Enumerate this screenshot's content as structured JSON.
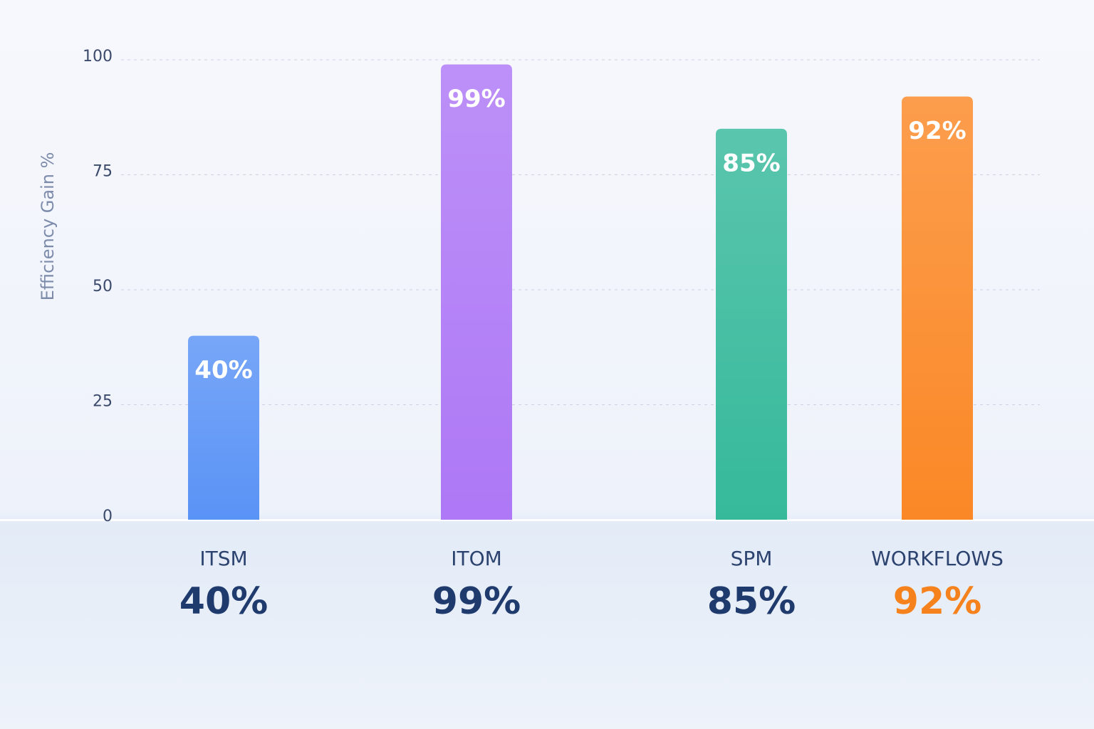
{
  "chart_data": {
    "type": "bar",
    "y_label": "Efficiency Gain %",
    "categories": [
      "ITSM",
      "ITOM",
      "SPM",
      "WORKFLOWS"
    ],
    "values": [
      40,
      99,
      85,
      92
    ],
    "value_labels": [
      "40%",
      "99%",
      "85%",
      "92%"
    ],
    "colors": [
      "#5a93f6",
      "#ae78f6",
      "#36b99b",
      "#fb8826"
    ],
    "value_label_colors": [
      "#1f3a6d",
      "#1f3a6d",
      "#1f3a6d",
      "#f5821c"
    ],
    "ylim": [
      0,
      100
    ],
    "yticks": [
      0,
      25,
      50,
      75,
      100
    ],
    "grid": true
  }
}
